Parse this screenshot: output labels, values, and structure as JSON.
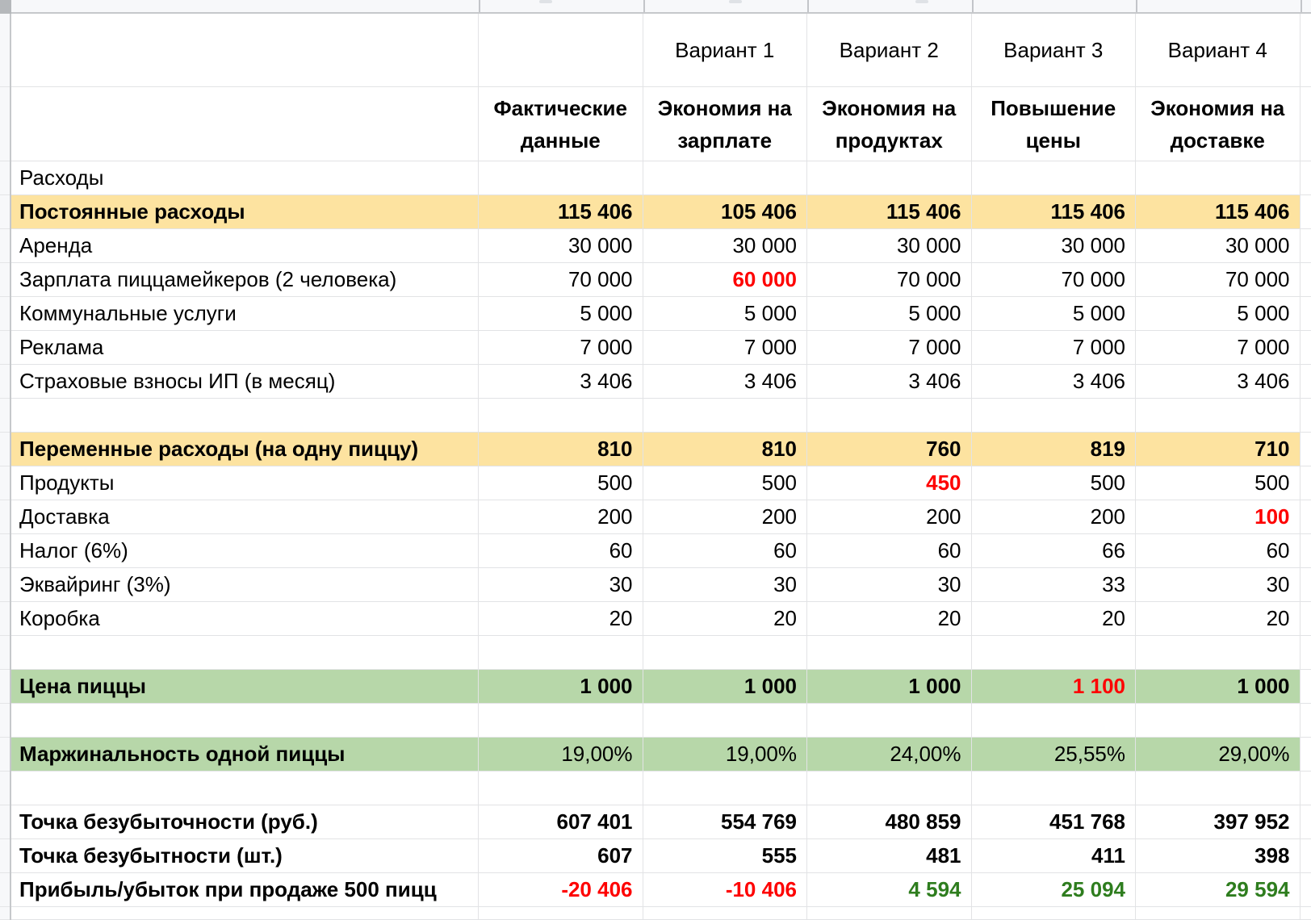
{
  "colors": {
    "highlight_yellow": "#fde3a0",
    "highlight_green_bg": "#b7d7a9",
    "negative_red": "#fe0000",
    "positive_green": "#2e7d1e",
    "gridline": "#e2e3e5",
    "header_strip_bg": "#f7f8fa",
    "header_strip_border": "#c6c8cb",
    "corner_block": "#b5b8bb"
  },
  "table": {
    "variant_headers": [
      "",
      "Вариант 1",
      "Вариант 2",
      "Вариант 3",
      "Вариант 4"
    ],
    "scenario_headers": [
      "Фактические данные",
      "Экономия на зарплате",
      "Экономия на продуктах",
      "Повышение цены",
      "Экономия на доставке"
    ],
    "rows": [
      {
        "label": "Расходы",
        "label_bold": false,
        "values_bold": false,
        "bg": "",
        "values": [
          "",
          "",
          "",
          "",
          ""
        ]
      },
      {
        "label": "Постоянные расходы",
        "label_bold": true,
        "values_bold": true,
        "bg": "yellow",
        "values": [
          "115 406",
          "105 406",
          "115 406",
          "115 406",
          "115 406"
        ]
      },
      {
        "label": "Аренда",
        "label_bold": false,
        "values_bold": false,
        "bg": "",
        "values": [
          "30 000",
          "30 000",
          "30 000",
          "30 000",
          "30 000"
        ]
      },
      {
        "label": "Зарплата пиццамейкеров (2 человека)",
        "label_bold": false,
        "values_bold": false,
        "bg": "",
        "values": [
          "70 000",
          {
            "t": "60 000",
            "c": "red"
          },
          "70 000",
          "70 000",
          "70 000"
        ]
      },
      {
        "label": "Коммунальные услуги",
        "label_bold": false,
        "values_bold": false,
        "bg": "",
        "values": [
          "5 000",
          "5 000",
          "5 000",
          "5 000",
          "5 000"
        ]
      },
      {
        "label": "Реклама",
        "label_bold": false,
        "values_bold": false,
        "bg": "",
        "values": [
          "7 000",
          "7 000",
          "7 000",
          "7 000",
          "7 000"
        ]
      },
      {
        "label": "Страховые взносы ИП (в месяц)",
        "label_bold": false,
        "values_bold": false,
        "bg": "",
        "values": [
          "3 406",
          "3 406",
          "3 406",
          "3 406",
          "3 406"
        ]
      },
      {
        "label": "",
        "label_bold": false,
        "values_bold": false,
        "bg": "",
        "values": [
          "",
          "",
          "",
          "",
          ""
        ]
      },
      {
        "label": "Переменные расходы (на одну пиццу)",
        "label_bold": true,
        "values_bold": true,
        "bg": "yellow",
        "values": [
          "810",
          "810",
          "760",
          "819",
          "710"
        ]
      },
      {
        "label": "Продукты",
        "label_bold": false,
        "values_bold": false,
        "bg": "",
        "values": [
          "500",
          "500",
          {
            "t": "450",
            "c": "red"
          },
          "500",
          "500"
        ]
      },
      {
        "label": "Доставка",
        "label_bold": false,
        "values_bold": false,
        "bg": "",
        "values": [
          "200",
          "200",
          "200",
          "200",
          {
            "t": "100",
            "c": "red"
          }
        ]
      },
      {
        "label": "Налог (6%)",
        "label_bold": false,
        "values_bold": false,
        "bg": "",
        "values": [
          "60",
          "60",
          "60",
          "66",
          "60"
        ]
      },
      {
        "label": "Эквайринг (3%)",
        "label_bold": false,
        "values_bold": false,
        "bg": "",
        "values": [
          "30",
          "30",
          "30",
          "33",
          "30"
        ]
      },
      {
        "label": "Коробка",
        "label_bold": false,
        "values_bold": false,
        "bg": "",
        "values": [
          "20",
          "20",
          "20",
          "20",
          "20"
        ]
      },
      {
        "label": "",
        "label_bold": false,
        "values_bold": false,
        "bg": "",
        "values": [
          "",
          "",
          "",
          "",
          ""
        ]
      },
      {
        "label": "Цена пиццы",
        "label_bold": true,
        "values_bold": true,
        "bg": "green",
        "values": [
          "1 000",
          "1 000",
          "1 000",
          {
            "t": "1 100",
            "c": "red"
          },
          "1 000"
        ]
      },
      {
        "label": "",
        "label_bold": false,
        "values_bold": false,
        "bg": "",
        "values": [
          "",
          "",
          "",
          "",
          ""
        ]
      },
      {
        "label": "Маржинальность одной пиццы",
        "label_bold": true,
        "values_bold": false,
        "bg": "green",
        "values": [
          "19,00%",
          "19,00%",
          "24,00%",
          "25,55%",
          "29,00%"
        ]
      },
      {
        "label": "",
        "label_bold": false,
        "values_bold": false,
        "bg": "",
        "values": [
          "",
          "",
          "",
          "",
          ""
        ]
      },
      {
        "label": "Точка безубыточности (руб.)",
        "label_bold": true,
        "values_bold": true,
        "bg": "",
        "values": [
          "607 401",
          "554 769",
          "480 859",
          "451 768",
          "397 952"
        ]
      },
      {
        "label": "Точка безубытности (шт.)",
        "label_bold": true,
        "values_bold": true,
        "bg": "",
        "values": [
          "607",
          "555",
          "481",
          "411",
          "398"
        ]
      },
      {
        "label": "Прибыль/убыток при продаже 500 пицц",
        "label_bold": true,
        "values_bold": true,
        "bg": "",
        "values": [
          {
            "t": "-20 406",
            "c": "red"
          },
          {
            "t": "-10 406",
            "c": "red"
          },
          {
            "t": "4 594",
            "c": "green"
          },
          {
            "t": "25 094",
            "c": "green"
          },
          {
            "t": "29 594",
            "c": "green"
          }
        ]
      },
      {
        "label": "",
        "label_bold": false,
        "values_bold": false,
        "bg": "",
        "values": [
          "",
          "",
          "",
          "",
          ""
        ],
        "partial": true
      }
    ]
  }
}
